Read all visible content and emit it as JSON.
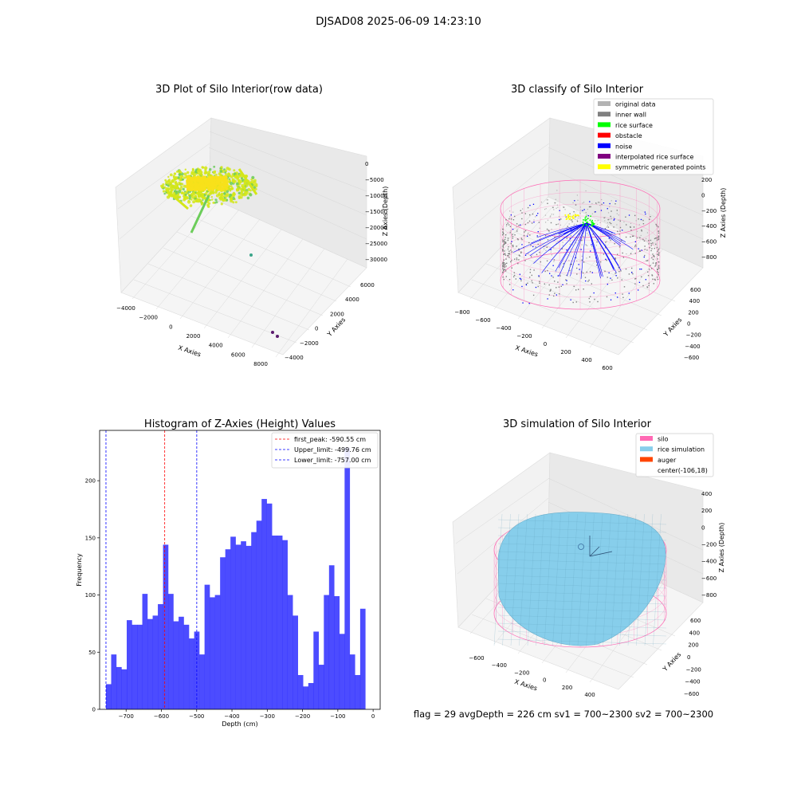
{
  "suptitle": "DJSAD08 2025-06-09 14:23:10",
  "panel_raw": {
    "title": "3D Plot of Silo Interior(row data)",
    "xlabel": "X Axies",
    "ylabel": "Y Axies",
    "zlabel": "Z Axies (Depth)",
    "xticks": [
      "−4000",
      "−2000",
      "0",
      "2000",
      "4000",
      "6000",
      "8000"
    ],
    "yticks": [
      "−4000",
      "−2000",
      "0",
      "2000",
      "4000",
      "6000"
    ],
    "zticks": [
      "0",
      "−5000",
      "−10000",
      "−15000",
      "−20000",
      "−25000",
      "−30000"
    ],
    "colors": {
      "cloud": "#d4e618",
      "core": "#f7e11b",
      "streak": "#6ccd5a",
      "outlier_teal": "#3aa58a",
      "outlier_purple": "#5b1a6e"
    }
  },
  "panel_classify": {
    "title": "3D classify of Silo Interior",
    "xlabel": "X Axies",
    "ylabel": "Y Axies",
    "zlabel": "Z Axies (Depth)",
    "xticks": [
      "−800",
      "−600",
      "−400",
      "−200",
      "0",
      "200",
      "400",
      "600"
    ],
    "yticks": [
      "−600",
      "−400",
      "−200",
      "0",
      "200",
      "400",
      "600"
    ],
    "zticks": [
      "200",
      "0",
      "−200",
      "−400",
      "−600",
      "−800"
    ],
    "legend": [
      {
        "label": "original data",
        "color": "#b3b3b3"
      },
      {
        "label": "inner wall",
        "color": "#808080"
      },
      {
        "label": "rice surface",
        "color": "#00ff00"
      },
      {
        "label": "obstacle",
        "color": "#ff0000"
      },
      {
        "label": "noise",
        "color": "#0000ff"
      },
      {
        "label": "interpolated rice surface",
        "color": "#800080"
      },
      {
        "label": "symmetric generated points",
        "color": "#ffff00"
      }
    ],
    "colors": {
      "mesh": "#ff69b4"
    }
  },
  "chart_data": {
    "type": "bar",
    "title": "Histogram of Z-Axies (Height) Values",
    "xlabel": "Depth (cm)",
    "ylabel": "Frequency",
    "xlim": [
      -775,
      20
    ],
    "ylim": [
      0,
      244
    ],
    "xticks": [
      -700,
      -600,
      -500,
      -400,
      -300,
      -200,
      -100,
      0
    ],
    "xtick_labels": [
      "−700",
      "−600",
      "−500",
      "−400",
      "−300",
      "−200",
      "−100",
      "0"
    ],
    "yticks": [
      0,
      50,
      100,
      150,
      200
    ],
    "bin_start": -757.0,
    "bin_width": 14.7,
    "values": [
      22,
      48,
      37,
      35,
      78,
      74,
      74,
      101,
      79,
      82,
      92,
      144,
      101,
      77,
      81,
      74,
      62,
      68,
      48,
      109,
      98,
      100,
      133,
      140,
      151,
      144,
      147,
      143,
      155,
      165,
      184,
      180,
      152,
      152,
      148,
      100,
      82,
      30,
      20,
      23,
      68,
      39,
      100,
      126,
      99,
      66,
      229,
      48,
      30,
      88
    ],
    "bar_color": "#0000ff",
    "lines": [
      {
        "label": "first_peak: -590.55 cm",
        "x": -590.55,
        "color": "#ff0000"
      },
      {
        "label": "Upper_limit: -499.76 cm",
        "x": -499.76,
        "color": "#0000ff"
      },
      {
        "label": "Lower_limit: -757.00 cm",
        "x": -757.0,
        "color": "#0000ff"
      }
    ]
  },
  "panel_sim": {
    "title": "3D simulation of Silo Interior",
    "xlabel": "X Axies",
    "ylabel": "Y Axies",
    "zlabel": "Z Axies (Depth)",
    "xticks": [
      "−600",
      "−400",
      "−200",
      "0",
      "200",
      "400"
    ],
    "yticks": [
      "−600",
      "−400",
      "−200",
      "0",
      "200",
      "400",
      "600"
    ],
    "zticks": [
      "400",
      "200",
      "0",
      "−200",
      "−400",
      "−600",
      "−800"
    ],
    "legend": [
      {
        "label": "silo",
        "color": "#ff69b4"
      },
      {
        "label": "rice simulation",
        "color": "#87ceeb"
      },
      {
        "label": "auger",
        "color": "#ff4500"
      },
      {
        "label": "center(-106,18)",
        "color": ""
      }
    ]
  },
  "footer_text": "flag = 29  avgDepth = 226 cm  sv1 = 700~2300  sv2 = 700~2300"
}
